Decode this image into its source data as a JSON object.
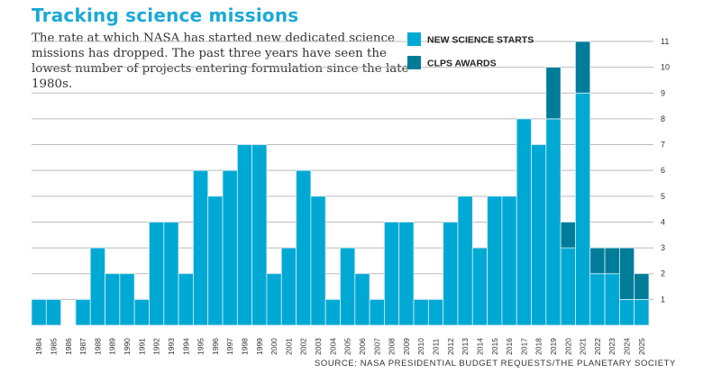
{
  "chart_data": {
    "type": "bar",
    "stacked": true,
    "title": "Tracking science missions",
    "subtitle": "The rate at which NASA has started new dedicated science missions has dropped. The past three years have seen the lowest number of projects entering formulation since the late 1980s.",
    "source": "SOURCE: NASA PRESIDENTIAL BUDGET REQUESTS/THE PLANETARY SOCIETY",
    "categories": [
      "1984",
      "1985",
      "1986",
      "1987",
      "1988",
      "1989",
      "1990",
      "1991",
      "1992",
      "1993",
      "1994",
      "1995",
      "1996",
      "1997",
      "1998",
      "1999",
      "2000",
      "2001",
      "2002",
      "2003",
      "2004",
      "2005",
      "2006",
      "2007",
      "2008",
      "2009",
      "2010",
      "2011",
      "2012",
      "2013",
      "2014",
      "2015",
      "2016",
      "2017",
      "2018",
      "2019",
      "2020",
      "2021",
      "2022",
      "2023",
      "2024",
      "2025"
    ],
    "series": [
      {
        "name": "NEW SCIENCE STARTS",
        "color": "#00a9d4",
        "values": [
          1,
          1,
          0,
          1,
          3,
          2,
          2,
          1,
          4,
          4,
          2,
          6,
          5,
          6,
          7,
          7,
          2,
          3,
          6,
          5,
          1,
          3,
          2,
          1,
          4,
          4,
          1,
          1,
          4,
          5,
          3,
          5,
          5,
          8,
          7,
          8,
          3,
          9,
          2,
          2,
          1,
          1
        ]
      },
      {
        "name": "CLPS AWARDS",
        "color": "#007c99",
        "values": [
          0,
          0,
          0,
          0,
          0,
          0,
          0,
          0,
          0,
          0,
          0,
          0,
          0,
          0,
          0,
          0,
          0,
          0,
          0,
          0,
          0,
          0,
          0,
          0,
          0,
          0,
          0,
          0,
          0,
          0,
          0,
          0,
          0,
          0,
          0,
          2,
          1,
          2,
          1,
          1,
          2,
          1
        ]
      }
    ],
    "yticks": [
      "1",
      "2",
      "3",
      "4",
      "5",
      "6",
      "7",
      "8",
      "9",
      "10",
      "11"
    ],
    "ylim": [
      0,
      11
    ],
    "grid": true,
    "legend_position": "top-right"
  }
}
